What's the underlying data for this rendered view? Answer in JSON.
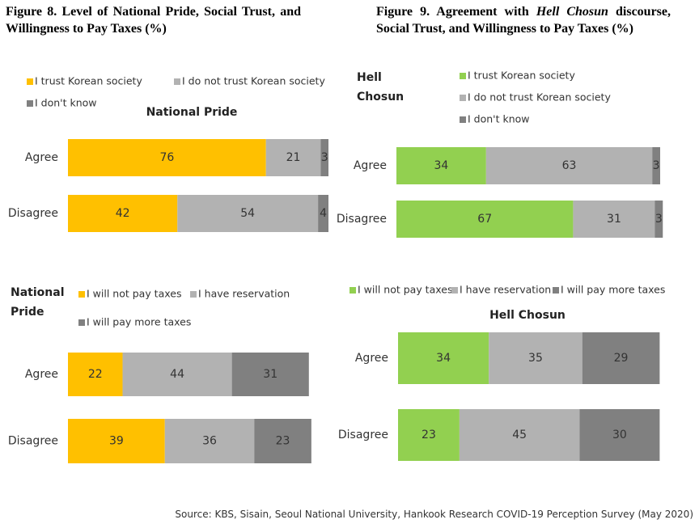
{
  "figures": [
    {
      "title": "Figure 8. Level of National Pride, Social Trust, and Willingness to Pay Taxes (%)"
    },
    {
      "title": [
        "Figure 9. Agreement with ",
        "Hell Chosun",
        " discourse, Social Trust, and Willingness to Pay Taxes (%)"
      ]
    }
  ],
  "source": "Source: KBS, Sisain, Seoul National University, Hankook Research COVID-19 Perception Survey (May 2020)",
  "chart_data": [
    {
      "type": "stacked_bar",
      "orientation": "horizontal",
      "title": "National Pride",
      "categories": [
        "Agree",
        "Disagree"
      ],
      "xlim": [
        0,
        100
      ],
      "series": [
        {
          "name": "I trust Korean society",
          "color": "#ffc000",
          "values": [
            76,
            42
          ]
        },
        {
          "name": "I do not trust Korean society",
          "color": "#b2b2b2",
          "values": [
            21,
            54
          ]
        },
        {
          "name": "I don't know",
          "color": "#808080",
          "values": [
            3,
            4
          ]
        }
      ]
    },
    {
      "type": "stacked_bar",
      "orientation": "horizontal",
      "y_label": "Hell Chosun",
      "categories": [
        "Agree",
        "Disagree"
      ],
      "xlim": [
        0,
        100
      ],
      "series": [
        {
          "name": "I trust Korean society",
          "color": "#92d050",
          "values": [
            34,
            67
          ]
        },
        {
          "name": "I do not trust Korean society",
          "color": "#b2b2b2",
          "values": [
            63,
            31
          ]
        },
        {
          "name": "I don't know",
          "color": "#808080",
          "values": [
            3,
            3
          ]
        }
      ]
    },
    {
      "type": "stacked_bar",
      "orientation": "horizontal",
      "y_label": "National Pride",
      "categories": [
        "Agree",
        "Disagree"
      ],
      "xlim": [
        0,
        100
      ],
      "series": [
        {
          "name": "I will not pay taxes",
          "color": "#ffc000",
          "values": [
            22,
            39
          ]
        },
        {
          "name": "I have reservation",
          "color": "#b2b2b2",
          "values": [
            44,
            36
          ]
        },
        {
          "name": "I will pay more taxes",
          "color": "#808080",
          "values": [
            31,
            23
          ]
        }
      ]
    },
    {
      "type": "stacked_bar",
      "orientation": "horizontal",
      "title": "Hell Chosun",
      "categories": [
        "Agree",
        "Disagree"
      ],
      "xlim": [
        0,
        100
      ],
      "series": [
        {
          "name": "I will not pay taxes",
          "color": "#92d050",
          "values": [
            34,
            23
          ]
        },
        {
          "name": "I have reservation",
          "color": "#b2b2b2",
          "values": [
            35,
            45
          ]
        },
        {
          "name": "I will pay more taxes",
          "color": "#808080",
          "values": [
            29,
            30
          ]
        }
      ]
    }
  ]
}
